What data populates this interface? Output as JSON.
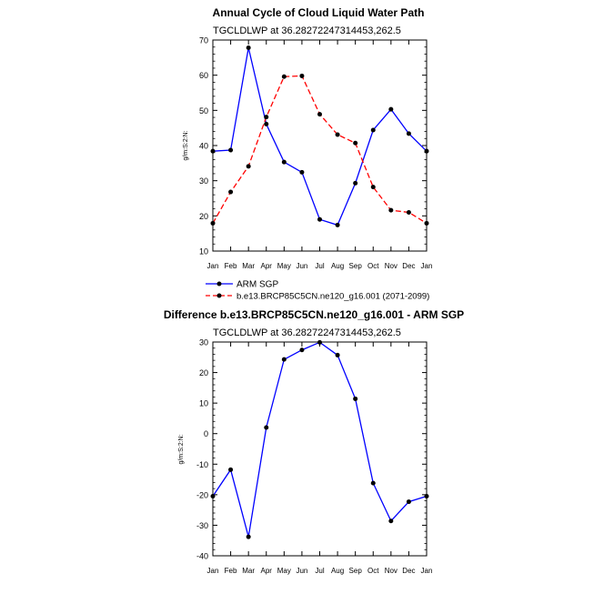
{
  "chart_data": [
    {
      "type": "line",
      "title": "Annual Cycle of Cloud Liquid Water Path",
      "subtitle": "TGCLDLWP at 36.28272247314453,262.5",
      "xlabel": "",
      "ylabel": "g/m:S:2:N:",
      "categories": [
        "Jan",
        "Feb",
        "Mar",
        "Apr",
        "May",
        "Jun",
        "Jul",
        "Aug",
        "Sep",
        "Oct",
        "Nov",
        "Dec",
        "Jan"
      ],
      "ylim": [
        10,
        70
      ],
      "yticks": [
        "10",
        "20",
        "30",
        "40",
        "50",
        "60",
        "70"
      ],
      "series": [
        {
          "name": "ARM SGP",
          "color": "#0000ff",
          "dash": "solid",
          "values": [
            38.4,
            38.7,
            67.8,
            46.1,
            35.3,
            32.4,
            19.0,
            17.4,
            29.3,
            44.4,
            50.3,
            43.4,
            38.4
          ]
        },
        {
          "name": "b.e13.BRCP85C5CN.ne120_g16.001 (2071-2099)",
          "color": "#ff0000",
          "dash": "dashed",
          "values": [
            17.9,
            26.8,
            34.1,
            48.1,
            59.6,
            59.8,
            48.9,
            43.1,
            40.7,
            28.2,
            21.6,
            21.0,
            17.9
          ]
        }
      ],
      "legend_position": "below"
    },
    {
      "type": "line",
      "title": "Difference b.e13.BRCP85C5CN.ne120_g16.001 - ARM SGP",
      "subtitle": "TGCLDLWP at 36.28272247314453,262.5",
      "xlabel": "",
      "ylabel": "g/m:S:2:N:",
      "categories": [
        "Jan",
        "Feb",
        "Mar",
        "Apr",
        "May",
        "Jun",
        "Jul",
        "Aug",
        "Sep",
        "Oct",
        "Nov",
        "Dec",
        "Jan"
      ],
      "ylim": [
        -40,
        30
      ],
      "yticks": [
        "-40",
        "-30",
        "-20",
        "-10",
        "0",
        "10",
        "20",
        "30"
      ],
      "series": [
        {
          "name": "Difference",
          "color": "#0000ff",
          "dash": "solid",
          "values": [
            -20.5,
            -11.8,
            -33.8,
            2.0,
            24.3,
            27.4,
            29.9,
            25.7,
            11.4,
            -16.2,
            -28.6,
            -22.3,
            -20.5
          ]
        }
      ]
    }
  ]
}
